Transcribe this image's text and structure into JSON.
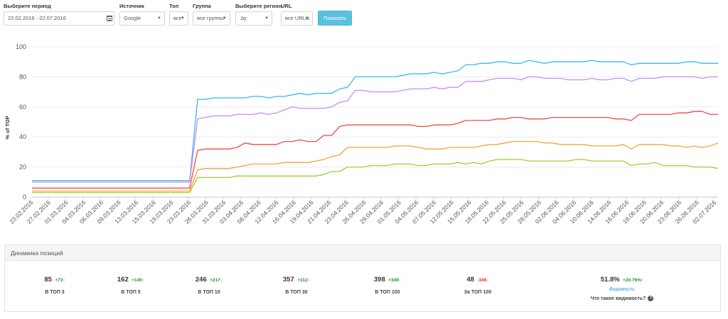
{
  "filters": {
    "period": {
      "label": "Выберите период",
      "value": "22.02.2016 - 22.07.2016"
    },
    "source": {
      "label": "Источник",
      "value": "Google"
    },
    "top": {
      "label": "Топ",
      "value": "все"
    },
    "group": {
      "label": "Группа",
      "value": "все группы"
    },
    "region": {
      "label": "Выберите регион",
      "value": ".by"
    },
    "url": {
      "label": "URL",
      "value": "все URLы"
    },
    "show_label": "Показать"
  },
  "chart_data": {
    "type": "line",
    "ylabel": "% of TOP",
    "xlabel": "",
    "ylim": [
      0,
      100
    ],
    "yticks": [
      0,
      20,
      40,
      60,
      80,
      100
    ],
    "grid": "horizontal",
    "legend": "none",
    "x_tick_labels": [
      "23.02.2016",
      "27.02.2016",
      "01.03.2016",
      "04.03.2016",
      "06.03.2016",
      "09.03.2016",
      "13.03.2016",
      "15.03.2016",
      "19.03.2016",
      "23.03.2016",
      "26.03.2016",
      "31.03.2016",
      "03.04.2016",
      "06.04.2016",
      "12.04.2016",
      "16.04.2016",
      "19.04.2016",
      "21.04.2016",
      "23.04.2016",
      "26.04.2016",
      "29.04.2016",
      "01.05.2016",
      "04.05.2016",
      "07.05.2016",
      "12.05.2016",
      "15.05.2016",
      "18.05.2016",
      "22.05.2016",
      "25.05.2016",
      "28.05.2016",
      "02.06.2016",
      "04.06.2016",
      "10.06.2016",
      "14.06.2016",
      "16.06.2016",
      "18.06.2016",
      "20.06.2016",
      "23.06.2016",
      "26.06.2016",
      "02.07.2016"
    ],
    "series": [
      {
        "color": "#3bbbe6",
        "values": [
          11,
          11,
          11,
          11,
          11,
          11,
          11,
          11,
          11,
          11,
          11,
          11,
          11,
          11,
          11,
          11,
          11,
          11,
          11,
          11,
          11,
          65,
          65,
          66,
          66,
          66,
          66,
          66,
          67,
          67,
          66,
          67,
          67,
          68,
          69,
          68,
          69,
          69,
          69,
          72,
          73,
          80,
          80,
          80,
          80,
          80,
          80,
          81,
          82,
          82,
          82,
          83,
          82,
          83,
          84,
          88,
          88,
          89,
          89,
          90,
          90,
          89,
          89,
          91,
          90,
          89,
          90,
          90,
          90,
          90,
          90,
          91,
          90,
          90,
          90,
          90,
          88,
          89,
          89,
          89,
          89,
          89,
          89,
          90,
          90,
          89,
          89,
          89
        ]
      },
      {
        "color": "#c98fee",
        "values": [
          10,
          10,
          10,
          10,
          10,
          10,
          10,
          10,
          10,
          10,
          10,
          10,
          10,
          10,
          10,
          10,
          10,
          10,
          10,
          10,
          10,
          52,
          53,
          54,
          54,
          54,
          55,
          55,
          55,
          56,
          55,
          56,
          58,
          60,
          59,
          59,
          59,
          59,
          60,
          63,
          64,
          71,
          71,
          70,
          70,
          70,
          70,
          71,
          72,
          72,
          72,
          73,
          72,
          73,
          73,
          77,
          77,
          77,
          78,
          79,
          79,
          79,
          78,
          80,
          80,
          79,
          79,
          79,
          78,
          78,
          78,
          79,
          78,
          78,
          79,
          79,
          77,
          79,
          79,
          79,
          80,
          80,
          80,
          80,
          80,
          79,
          80,
          80
        ]
      },
      {
        "color": "#ef4b4b",
        "values": [
          6,
          6,
          6,
          6,
          6,
          6,
          6,
          6,
          6,
          6,
          6,
          6,
          6,
          6,
          6,
          6,
          6,
          6,
          6,
          6,
          6,
          31,
          32,
          32,
          32,
          32,
          33,
          36,
          35,
          35,
          35,
          35,
          37,
          37,
          38,
          37,
          37,
          41,
          41,
          47,
          48,
          48,
          48,
          48,
          48,
          48,
          48,
          48,
          48,
          47,
          47,
          48,
          48,
          48,
          49,
          51,
          51,
          51,
          51,
          52,
          52,
          53,
          53,
          52,
          52,
          52,
          53,
          53,
          53,
          53,
          53,
          53,
          53,
          53,
          52,
          52,
          51,
          55,
          55,
          55,
          55,
          55,
          56,
          56,
          57,
          57,
          55,
          55
        ]
      },
      {
        "color": "#f5a23c",
        "values": [
          4,
          4,
          4,
          4,
          4,
          4,
          4,
          4,
          4,
          4,
          4,
          4,
          4,
          4,
          4,
          4,
          4,
          4,
          4,
          4,
          4,
          18,
          19,
          19,
          19,
          19,
          20,
          21,
          22,
          22,
          22,
          22,
          23,
          23,
          23,
          23,
          24,
          25,
          27,
          28,
          33,
          33,
          33,
          33,
          33,
          33,
          34,
          34,
          34,
          33,
          32,
          32,
          32,
          33,
          33,
          33,
          33,
          34,
          35,
          35,
          36,
          37,
          37,
          37,
          37,
          36,
          36,
          35,
          35,
          35,
          35,
          34,
          34,
          34,
          34,
          35,
          32,
          35,
          35,
          35,
          35,
          34,
          34,
          33,
          34,
          33,
          34,
          36
        ]
      },
      {
        "color": "#9bd12e",
        "values": [
          3,
          3,
          3,
          3,
          3,
          3,
          3,
          3,
          3,
          3,
          3,
          3,
          3,
          3,
          3,
          3,
          3,
          3,
          3,
          3,
          3,
          13,
          13,
          13,
          13,
          13,
          14,
          14,
          14,
          14,
          14,
          14,
          14,
          14,
          14,
          14,
          14,
          15,
          17,
          17,
          20,
          20,
          20,
          21,
          21,
          21,
          22,
          22,
          22,
          21,
          21,
          22,
          22,
          22,
          23,
          22,
          23,
          22,
          24,
          25,
          25,
          25,
          25,
          24,
          24,
          24,
          24,
          24,
          24,
          25,
          25,
          24,
          24,
          24,
          24,
          24,
          21,
          22,
          22,
          23,
          21,
          21,
          21,
          21,
          20,
          20,
          20,
          19
        ]
      }
    ]
  },
  "dynamics": {
    "title": "Динамика позиций",
    "items": [
      {
        "value": "85",
        "delta": "+73",
        "arrow": "↑",
        "dir": "pos",
        "label": "В ТОП 3"
      },
      {
        "value": "162",
        "delta": "+145",
        "arrow": "↑",
        "dir": "pos",
        "label": "В ТОП 5"
      },
      {
        "value": "246",
        "delta": "+217",
        "arrow": "↑",
        "dir": "pos",
        "label": "В ТОП 10"
      },
      {
        "value": "357",
        "delta": "+312",
        "arrow": "↑",
        "dir": "pos",
        "label": "В ТОП 30"
      },
      {
        "value": "398",
        "delta": "+349",
        "arrow": "↑",
        "dir": "pos",
        "label": "В ТОП 100"
      },
      {
        "value": "48",
        "delta": "-349",
        "arrow": "↓",
        "dir": "neg",
        "label": "За ТОП 100"
      }
    ],
    "visibility": {
      "value": "51.8%",
      "delta": "+20.76%",
      "arrow": "↑",
      "link": "Видимость",
      "question": "Что такое видимость?",
      "help_icon": "question-circle-icon"
    }
  }
}
